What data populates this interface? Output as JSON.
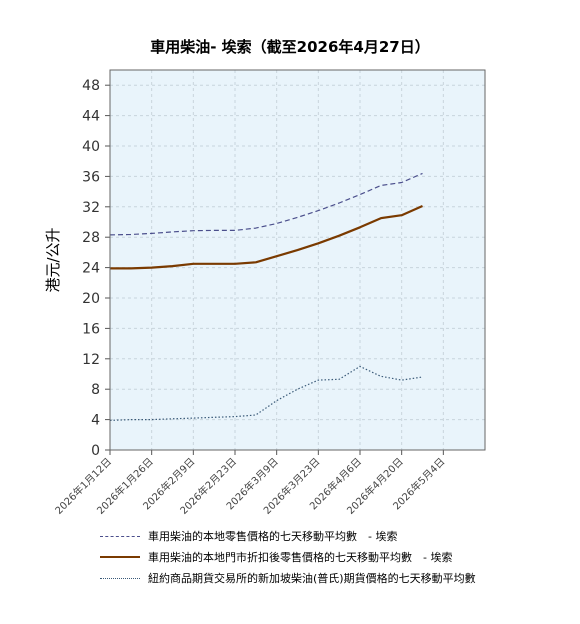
{
  "chart_data": {
    "type": "line",
    "title": "車用柴油- 埃索（截至2026年4月27日）",
    "ylabel": "港元/公升",
    "ylim": [
      0,
      50
    ],
    "yticks": [
      0,
      4,
      8,
      12,
      16,
      20,
      24,
      28,
      32,
      36,
      40,
      44,
      48
    ],
    "x_start": "2026-01-12",
    "x_end": "2026-05-18",
    "x_tick_labels": [
      "2026年1月12日",
      "2026年1月26日",
      "2026年2月9日",
      "2026年2月23日",
      "2026年3月9日",
      "2026年3月23日",
      "2026年4月6日",
      "2026年4月20日",
      "2026年5月4日"
    ],
    "grid": true,
    "legend_position": "bottom",
    "colors": {
      "plot_bg": "#e9f4fb",
      "retail": "#4b4f8c",
      "discounted": "#7a3a00",
      "platts": "#3a5a78"
    },
    "series": [
      {
        "name": "車用柴油的本地零售價格的七天移動平均數　- 埃索",
        "style": "dashed",
        "points": [
          [
            "2026-01-12",
            28.3
          ],
          [
            "2026-01-19",
            28.35
          ],
          [
            "2026-01-26",
            28.5
          ],
          [
            "2026-02-02",
            28.7
          ],
          [
            "2026-02-09",
            28.85
          ],
          [
            "2026-02-16",
            28.9
          ],
          [
            "2026-02-23",
            28.9
          ],
          [
            "2026-03-02",
            29.2
          ],
          [
            "2026-03-09",
            29.8
          ],
          [
            "2026-03-16",
            30.6
          ],
          [
            "2026-03-23",
            31.5
          ],
          [
            "2026-03-30",
            32.5
          ],
          [
            "2026-04-06",
            33.6
          ],
          [
            "2026-04-13",
            34.8
          ],
          [
            "2026-04-20",
            35.2
          ],
          [
            "2026-04-27",
            36.4
          ]
        ]
      },
      {
        "name": "車用柴油的本地門市折扣後零售價格的七天移動平均數　- 埃索",
        "style": "solid",
        "points": [
          [
            "2026-01-12",
            23.9
          ],
          [
            "2026-01-19",
            23.9
          ],
          [
            "2026-01-26",
            24.0
          ],
          [
            "2026-02-02",
            24.2
          ],
          [
            "2026-02-09",
            24.5
          ],
          [
            "2026-02-16",
            24.5
          ],
          [
            "2026-02-23",
            24.5
          ],
          [
            "2026-03-02",
            24.7
          ],
          [
            "2026-03-09",
            25.5
          ],
          [
            "2026-03-16",
            26.3
          ],
          [
            "2026-03-23",
            27.2
          ],
          [
            "2026-03-30",
            28.2
          ],
          [
            "2026-04-06",
            29.3
          ],
          [
            "2026-04-13",
            30.5
          ],
          [
            "2026-04-20",
            30.9
          ],
          [
            "2026-04-27",
            32.1
          ]
        ]
      },
      {
        "name": "紐約商品期貨交易所的新加坡柴油(普氏)期貨價格的七天移動平均數",
        "style": "dotted",
        "points": [
          [
            "2026-01-12",
            3.9
          ],
          [
            "2026-01-19",
            4.0
          ],
          [
            "2026-01-26",
            4.0
          ],
          [
            "2026-02-02",
            4.1
          ],
          [
            "2026-02-09",
            4.2
          ],
          [
            "2026-02-16",
            4.3
          ],
          [
            "2026-02-23",
            4.4
          ],
          [
            "2026-03-02",
            4.6
          ],
          [
            "2026-03-09",
            6.5
          ],
          [
            "2026-03-16",
            8.0
          ],
          [
            "2026-03-23",
            9.2
          ],
          [
            "2026-03-30",
            9.3
          ],
          [
            "2026-04-06",
            11.0
          ],
          [
            "2026-04-13",
            9.7
          ],
          [
            "2026-04-20",
            9.2
          ],
          [
            "2026-04-27",
            9.6
          ]
        ]
      }
    ]
  }
}
